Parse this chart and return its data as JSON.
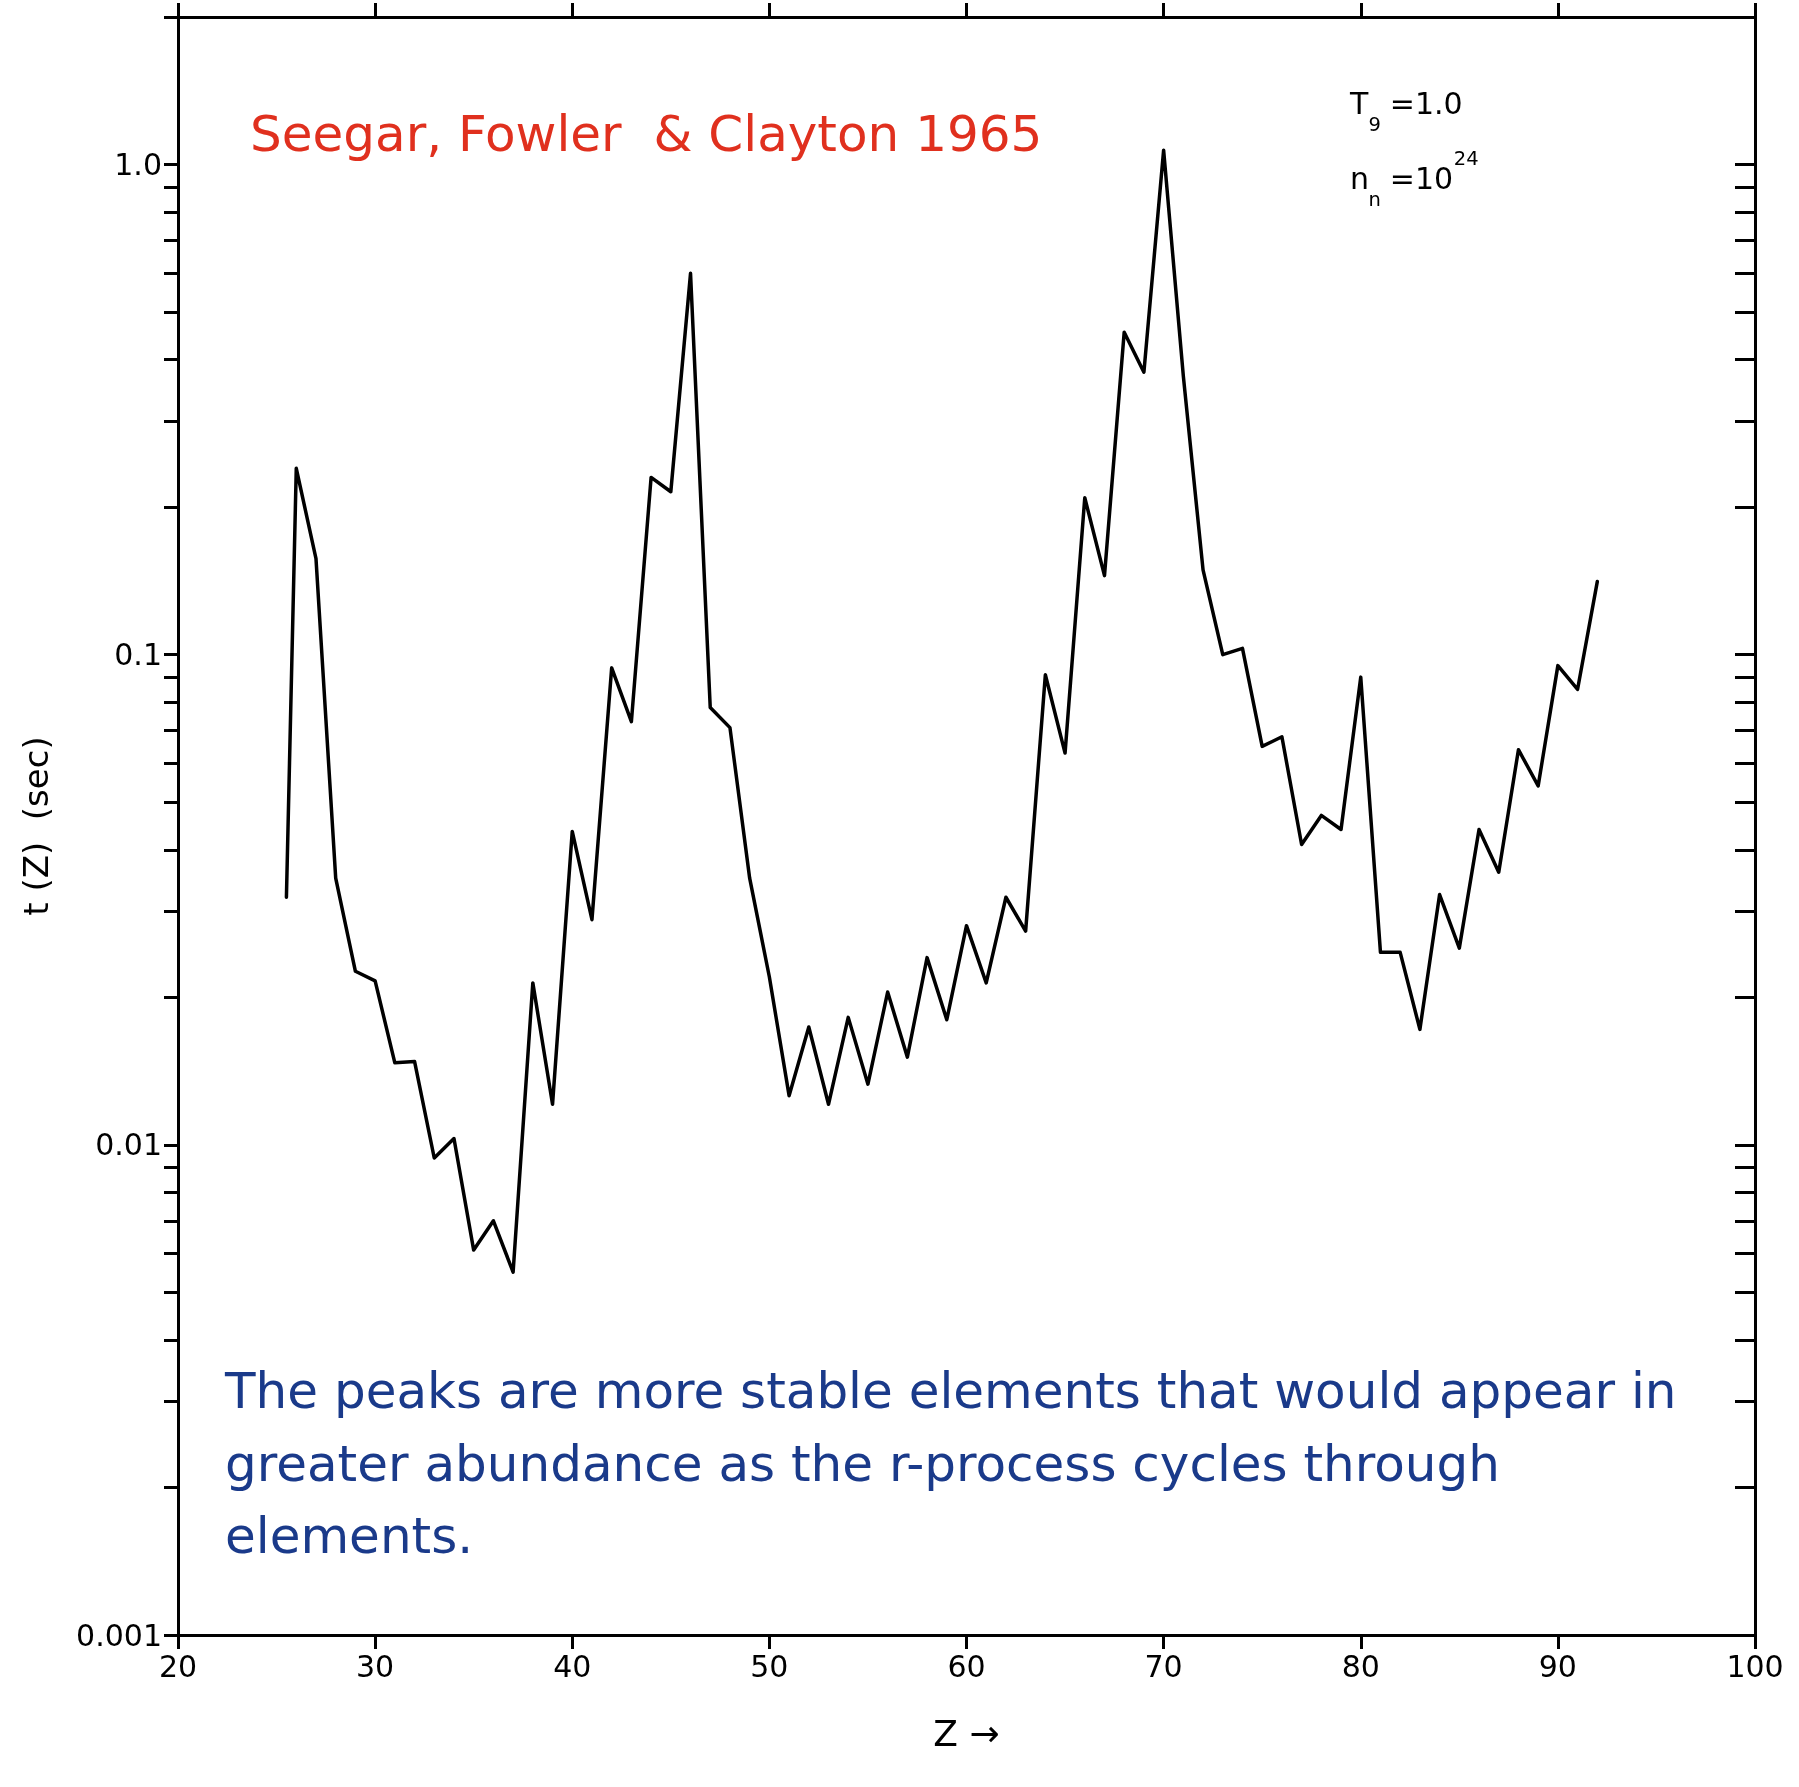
{
  "chart_data": {
    "type": "line",
    "xlabel": "Z →",
    "ylabel": "t (Z)  (sec)",
    "annotations": [
      "Seegar, Fowler  & Clayton 1965",
      "T$_{9}$ =1.0",
      "n$_{n}$ =10$^{24}$",
      "The peaks are more stable elements that would appear in greater abundance as the r-process cycles through elements."
    ],
    "x": [
      25.5,
      26,
      27,
      28,
      29,
      30,
      31,
      32,
      33,
      34,
      35,
      36,
      37,
      38,
      39,
      40,
      41,
      42,
      43,
      44,
      45,
      46,
      47,
      48,
      49,
      50,
      51,
      52,
      53,
      54,
      55,
      56,
      57,
      58,
      59,
      60,
      61,
      62,
      63,
      64,
      65,
      66,
      67,
      68,
      69,
      70,
      71,
      72,
      73,
      74,
      75,
      76,
      77,
      78,
      79,
      80,
      81,
      82,
      83,
      84,
      85,
      86,
      87,
      88,
      89,
      90,
      91,
      92
    ],
    "series": [
      {
        "color": "#000000",
        "values": [
          0.032,
          0.24,
          0.157,
          0.035,
          0.0226,
          0.0216,
          0.0147,
          0.0148,
          0.0094,
          0.0103,
          0.0061,
          0.007,
          0.0055,
          0.0214,
          0.0121,
          0.0436,
          0.0288,
          0.094,
          0.073,
          0.23,
          0.215,
          0.6,
          0.078,
          0.071,
          0.035,
          0.022,
          0.0126,
          0.0174,
          0.0121,
          0.0182,
          0.0133,
          0.0205,
          0.0151,
          0.0241,
          0.018,
          0.028,
          0.0214,
          0.032,
          0.0273,
          0.091,
          0.063,
          0.209,
          0.145,
          0.455,
          0.377,
          1.07,
          0.37,
          0.149,
          0.1,
          0.103,
          0.065,
          0.068,
          0.041,
          0.047,
          0.044,
          0.09,
          0.0247,
          0.0247,
          0.0172,
          0.0324,
          0.0252,
          0.044,
          0.036,
          0.064,
          0.054,
          0.095,
          0.085,
          0.141
        ]
      }
    ],
    "log": "y",
    "xlim": [
      20,
      100
    ],
    "xticks": [
      20,
      30,
      40,
      50,
      60,
      70,
      80,
      90,
      100
    ],
    "ylim": [
      0.001,
      2
    ],
    "yticks": [
      {
        "value": 0.001,
        "label": "0.001"
      },
      {
        "value": 0.002,
        "label": null
      },
      {
        "value": 0.003,
        "label": null
      },
      {
        "value": 0.004,
        "label": null
      },
      {
        "value": 0.005,
        "label": null
      },
      {
        "value": 0.006,
        "label": null
      },
      {
        "value": 0.007,
        "label": null
      },
      {
        "value": 0.008,
        "label": null
      },
      {
        "value": 0.009,
        "label": null
      },
      {
        "value": 0.01,
        "label": "0.01"
      },
      {
        "value": 0.02,
        "label": null
      },
      {
        "value": 0.03,
        "label": null
      },
      {
        "value": 0.04,
        "label": null
      },
      {
        "value": 0.05,
        "label": null
      },
      {
        "value": 0.06,
        "label": null
      },
      {
        "value": 0.07,
        "label": null
      },
      {
        "value": 0.08,
        "label": null
      },
      {
        "value": 0.09,
        "label": null
      },
      {
        "value": 0.1,
        "label": "0.1"
      },
      {
        "value": 0.2,
        "label": null
      },
      {
        "value": 0.3,
        "label": null
      },
      {
        "value": 0.4,
        "label": null
      },
      {
        "value": 0.5,
        "label": null
      },
      {
        "value": 0.6,
        "label": null
      },
      {
        "value": 0.7,
        "label": null
      },
      {
        "value": 0.8,
        "label": null
      },
      {
        "value": 0.9,
        "label": null
      },
      {
        "value": 1,
        "label": "1.0"
      },
      {
        "value": 2,
        "label": null
      }
    ],
    "grid": false,
    "marker": "none",
    "line_style": "solid"
  }
}
